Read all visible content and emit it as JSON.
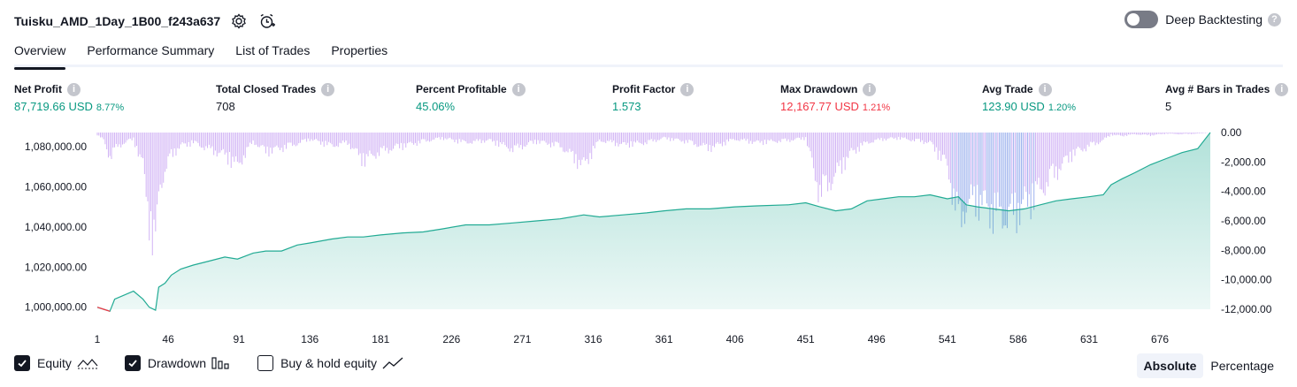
{
  "header": {
    "title": "Tuisku_AMD_1Day_1B00_f243a637",
    "icons": [
      "settings-icon",
      "add-alert-icon"
    ]
  },
  "deep_backtesting": {
    "label": "Deep Backtesting",
    "enabled": false,
    "help": "?"
  },
  "tabs": [
    {
      "label": "Overview",
      "active": true
    },
    {
      "label": "Performance Summary",
      "active": false
    },
    {
      "label": "List of Trades",
      "active": false
    },
    {
      "label": "Properties",
      "active": false
    }
  ],
  "metrics": {
    "net_profit": {
      "label": "Net Profit",
      "value": "87,719.66 USD",
      "pct": "8.77%"
    },
    "total_closed_trades": {
      "label": "Total Closed Trades",
      "value": "708"
    },
    "percent_profitable": {
      "label": "Percent Profitable",
      "value": "45.06%"
    },
    "profit_factor": {
      "label": "Profit Factor",
      "value": "1.573"
    },
    "max_drawdown": {
      "label": "Max Drawdown",
      "value": "12,167.77 USD",
      "pct": "1.21%"
    },
    "avg_trade": {
      "label": "Avg Trade",
      "value": "123.90 USD",
      "pct": "1.20%"
    },
    "avg_bars": {
      "label": "Avg # Bars in Trades",
      "value": "5"
    }
  },
  "colors": {
    "profit": "#089981",
    "loss": "#f23645",
    "equity_line": "#22ab94",
    "drawdown_bar": "#d1b3f5",
    "drawdown_bar_deep": "#9db2ee"
  },
  "chart_data": {
    "type": "area",
    "x_ticks": [
      "1",
      "46",
      "91",
      "136",
      "181",
      "226",
      "271",
      "316",
      "361",
      "406",
      "451",
      "496",
      "541",
      "586",
      "631",
      "676"
    ],
    "x_range": [
      1,
      708
    ],
    "left_axis": {
      "ticks": [
        "1,080,000.00",
        "1,060,000.00",
        "1,040,000.00",
        "1,020,000.00",
        "1,000,000.00"
      ],
      "range": [
        999000,
        1087000
      ]
    },
    "right_axis": {
      "ticks": [
        "0.00",
        "-2,000.00",
        "-4,000.00",
        "-6,000.00",
        "-8,000.00",
        "-10,000.00",
        "-12,000.00"
      ],
      "range": [
        -12000,
        0
      ]
    },
    "series": [
      {
        "name": "Equity",
        "points": [
          [
            1,
            1000000
          ],
          [
            5,
            999000
          ],
          [
            9,
            998000
          ],
          [
            12,
            1004000
          ],
          [
            18,
            1006000
          ],
          [
            24,
            1008000
          ],
          [
            30,
            1004000
          ],
          [
            34,
            1000000
          ],
          [
            38,
            998500
          ],
          [
            40,
            1010000
          ],
          [
            44,
            1012000
          ],
          [
            48,
            1016000
          ],
          [
            54,
            1019000
          ],
          [
            62,
            1021000
          ],
          [
            72,
            1023000
          ],
          [
            82,
            1025000
          ],
          [
            90,
            1024000
          ],
          [
            100,
            1027000
          ],
          [
            108,
            1028000
          ],
          [
            118,
            1028000
          ],
          [
            128,
            1031000
          ],
          [
            136,
            1032000
          ],
          [
            150,
            1034000
          ],
          [
            160,
            1035000
          ],
          [
            170,
            1035000
          ],
          [
            181,
            1036000
          ],
          [
            195,
            1037000
          ],
          [
            208,
            1037500
          ],
          [
            220,
            1039000
          ],
          [
            235,
            1041000
          ],
          [
            250,
            1041000
          ],
          [
            265,
            1042000
          ],
          [
            280,
            1043000
          ],
          [
            295,
            1044000
          ],
          [
            310,
            1046000
          ],
          [
            320,
            1045000
          ],
          [
            335,
            1046000
          ],
          [
            350,
            1047000
          ],
          [
            361,
            1048000
          ],
          [
            375,
            1049000
          ],
          [
            390,
            1049000
          ],
          [
            406,
            1050000
          ],
          [
            420,
            1050500
          ],
          [
            440,
            1051000
          ],
          [
            451,
            1052000
          ],
          [
            460,
            1050000
          ],
          [
            470,
            1048000
          ],
          [
            480,
            1049000
          ],
          [
            490,
            1053000
          ],
          [
            500,
            1054000
          ],
          [
            510,
            1055000
          ],
          [
            520,
            1055000
          ],
          [
            530,
            1056000
          ],
          [
            541,
            1054000
          ],
          [
            548,
            1055000
          ],
          [
            553,
            1051000
          ],
          [
            560,
            1050000
          ],
          [
            570,
            1049000
          ],
          [
            580,
            1048000
          ],
          [
            590,
            1049000
          ],
          [
            600,
            1051000
          ],
          [
            610,
            1053000
          ],
          [
            620,
            1054000
          ],
          [
            631,
            1055000
          ],
          [
            640,
            1056000
          ],
          [
            645,
            1061000
          ],
          [
            652,
            1064000
          ],
          [
            660,
            1067000
          ],
          [
            670,
            1071000
          ],
          [
            680,
            1074000
          ],
          [
            690,
            1077000
          ],
          [
            700,
            1079000
          ],
          [
            708,
            1087000
          ]
        ]
      },
      {
        "name": "Drawdown",
        "points": [
          [
            1,
            -200
          ],
          [
            5,
            -700
          ],
          [
            9,
            -2200
          ],
          [
            12,
            -1500
          ],
          [
            18,
            -900
          ],
          [
            24,
            -600
          ],
          [
            30,
            -3000
          ],
          [
            34,
            -7500
          ],
          [
            38,
            -11500
          ],
          [
            40,
            -5000
          ],
          [
            44,
            -3500
          ],
          [
            48,
            -2000
          ],
          [
            54,
            -1200
          ],
          [
            62,
            -900
          ],
          [
            72,
            -1500
          ],
          [
            82,
            -2000
          ],
          [
            90,
            -3000
          ],
          [
            100,
            -800
          ],
          [
            108,
            -1700
          ],
          [
            118,
            -1400
          ],
          [
            128,
            -1000
          ],
          [
            136,
            -600
          ],
          [
            150,
            -1200
          ],
          [
            160,
            -900
          ],
          [
            170,
            -2500
          ],
          [
            181,
            -1700
          ],
          [
            195,
            -1200
          ],
          [
            208,
            -800
          ],
          [
            220,
            -500
          ],
          [
            235,
            -900
          ],
          [
            250,
            -700
          ],
          [
            265,
            -1500
          ],
          [
            280,
            -800
          ],
          [
            295,
            -1200
          ],
          [
            310,
            -3000
          ],
          [
            320,
            -700
          ],
          [
            335,
            -1100
          ],
          [
            350,
            -900
          ],
          [
            361,
            -500
          ],
          [
            375,
            -800
          ],
          [
            390,
            -1400
          ],
          [
            406,
            -600
          ],
          [
            420,
            -900
          ],
          [
            440,
            -700
          ],
          [
            451,
            -500
          ],
          [
            460,
            -5500
          ],
          [
            470,
            -3800
          ],
          [
            480,
            -1800
          ],
          [
            490,
            -900
          ],
          [
            500,
            -600
          ],
          [
            510,
            -500
          ],
          [
            520,
            -700
          ],
          [
            530,
            -900
          ],
          [
            541,
            -3000
          ],
          [
            548,
            -8000
          ],
          [
            553,
            -6500
          ],
          [
            560,
            -6000
          ],
          [
            570,
            -7200
          ],
          [
            580,
            -7600
          ],
          [
            590,
            -6500
          ],
          [
            600,
            -5200
          ],
          [
            610,
            -3500
          ],
          [
            620,
            -2000
          ],
          [
            631,
            -1200
          ],
          [
            640,
            -700
          ],
          [
            645,
            -200
          ],
          [
            652,
            -300
          ],
          [
            660,
            -150
          ],
          [
            670,
            -250
          ],
          [
            680,
            -100
          ],
          [
            690,
            -150
          ],
          [
            700,
            -100
          ],
          [
            708,
            0
          ]
        ]
      }
    ]
  },
  "legend": {
    "items": [
      {
        "label": "Equity",
        "checked": true,
        "icon": "equity-line-icon"
      },
      {
        "label": "Drawdown",
        "checked": true,
        "icon": "drawdown-bars-icon"
      },
      {
        "label": "Buy & hold equity",
        "checked": false,
        "icon": "buyhold-line-icon"
      }
    ]
  },
  "view_mode": {
    "absolute": "Absolute",
    "percentage": "Percentage",
    "selected": "Absolute"
  }
}
